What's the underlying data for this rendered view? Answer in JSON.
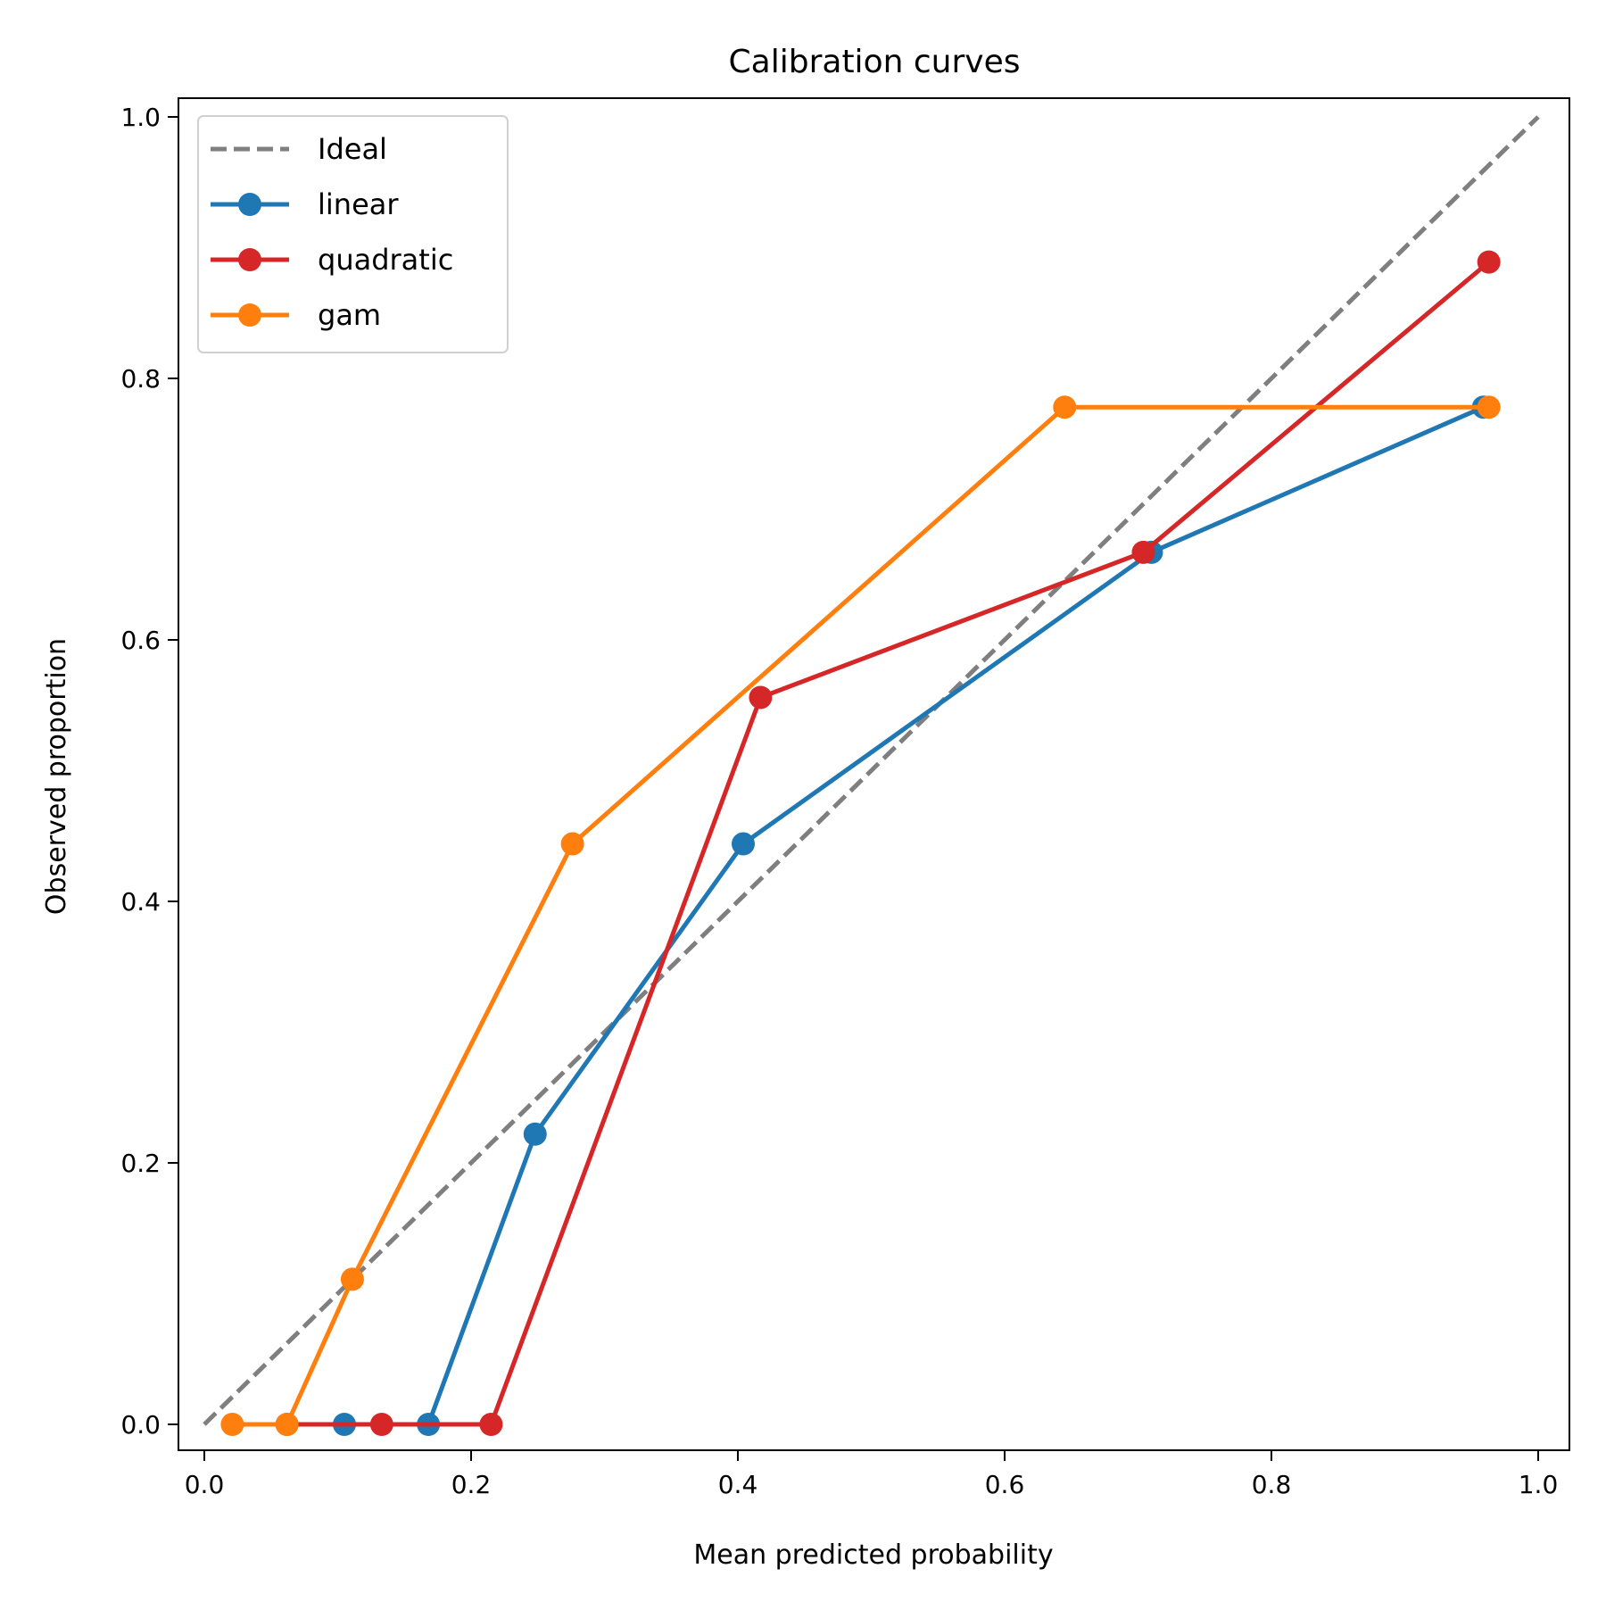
{
  "chart_data": {
    "type": "line",
    "title": "Calibration curves",
    "xlabel": "Mean predicted probability",
    "ylabel": "Observed proportion",
    "xlim": [
      -0.02,
      1.02
    ],
    "ylim": [
      -0.02,
      1.02
    ],
    "xticks": [
      "0.0",
      "0.2",
      "0.4",
      "0.6",
      "0.8",
      "1.0"
    ],
    "yticks": [
      "0.0",
      "0.2",
      "0.4",
      "0.6",
      "0.8",
      "1.0"
    ],
    "grid": false,
    "legend_position": "top-left",
    "series": [
      {
        "name": "Ideal",
        "color": "#7f7f7f",
        "dashed": true,
        "markers": false,
        "x": [
          0,
          1
        ],
        "y": [
          0,
          1
        ]
      },
      {
        "name": "linear",
        "color": "#1f77b4",
        "dashed": false,
        "markers": true,
        "x": [
          0.105,
          0.168,
          0.248,
          0.404,
          0.71,
          0.959
        ],
        "y": [
          0,
          0,
          0.222,
          0.444,
          0.667,
          0.778
        ]
      },
      {
        "name": "quadratic",
        "color": "#d62728",
        "dashed": false,
        "markers": true,
        "x": [
          0.062,
          0.133,
          0.215,
          0.417,
          0.704,
          0.963
        ],
        "y": [
          0,
          0,
          0,
          0.556,
          0.667,
          0.889
        ]
      },
      {
        "name": "gam",
        "color": "#ff7f0e",
        "dashed": false,
        "markers": true,
        "x": [
          0.021,
          0.062,
          0.111,
          0.276,
          0.645,
          0.963
        ],
        "y": [
          0,
          0,
          0.111,
          0.444,
          0.778,
          0.778
        ]
      }
    ]
  }
}
